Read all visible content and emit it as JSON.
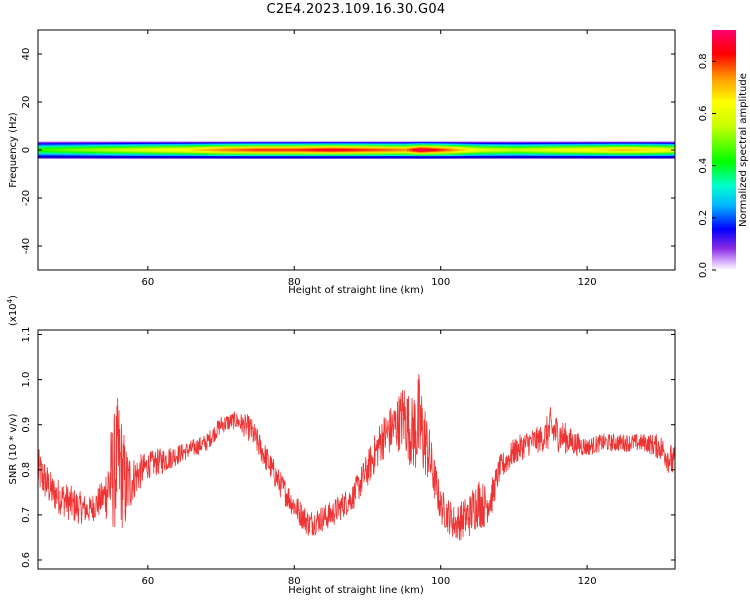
{
  "title": "C2E4.2023.109.16.30.G04",
  "chart_data": [
    {
      "type": "heatmap",
      "xlabel": "Height of straight line (km)",
      "ylabel": "Frequency (Hz)",
      "xlim": [
        45,
        132
      ],
      "ylim": [
        -50,
        50
      ],
      "xticks": [
        60,
        80,
        100,
        120
      ],
      "yticks": [
        -40,
        -20,
        0,
        20,
        40
      ],
      "band": {
        "center_hz": 0,
        "half_width_hz": 3,
        "peak_profile": {
          "x": [
            45,
            50,
            55,
            60,
            65,
            70,
            75,
            80,
            85,
            90,
            95,
            97,
            100,
            105,
            110,
            115,
            120,
            125,
            130,
            132
          ],
          "amplitude": [
            0.45,
            0.5,
            0.55,
            0.6,
            0.65,
            0.75,
            0.8,
            0.8,
            0.85,
            0.8,
            0.75,
            0.9,
            0.8,
            0.6,
            0.55,
            0.6,
            0.65,
            0.7,
            0.65,
            0.6
          ]
        }
      },
      "colorbar": {
        "label": "Normalized spectral amplitude",
        "range": [
          0,
          0.92
        ],
        "ticks": [
          "0.0",
          "0.2",
          "0.4",
          "0.6",
          "0.8"
        ],
        "tick_values": [
          0,
          0.2,
          0.4,
          0.6,
          0.8
        ]
      }
    },
    {
      "type": "line",
      "xlabel": "Height of straight line (km)",
      "ylabel": "SNR (10 * v/v)",
      "y_multiplier": "(x10",
      "y_multiplier_exp": "4",
      "y_multiplier_close": ")",
      "xlim": [
        45,
        132
      ],
      "ylim": [
        0.58,
        1.11
      ],
      "xticks": [
        60,
        80,
        100,
        120
      ],
      "yticks": [
        "0.6",
        "0.7",
        "0.8",
        "0.9",
        "1.0",
        "1.1"
      ],
      "ytick_values": [
        0.6,
        0.7,
        0.8,
        0.9,
        1.0,
        1.1
      ],
      "series": [
        {
          "color": "#ee3333",
          "x": [
            45,
            47,
            50,
            52,
            54,
            55,
            56,
            57,
            58,
            60,
            62,
            65,
            68,
            70,
            72,
            74,
            76,
            78,
            80,
            82,
            85,
            88,
            90,
            92,
            94,
            95,
            96,
            97,
            98,
            99,
            100,
            102,
            104,
            105,
            106,
            107,
            108,
            110,
            112,
            114,
            115,
            116,
            118,
            120,
            122,
            125,
            128,
            130,
            132
          ],
          "y": [
            0.8,
            0.75,
            0.72,
            0.71,
            0.74,
            0.78,
            0.82,
            0.76,
            0.78,
            0.81,
            0.82,
            0.84,
            0.86,
            0.9,
            0.91,
            0.89,
            0.83,
            0.77,
            0.72,
            0.68,
            0.7,
            0.74,
            0.8,
            0.87,
            0.9,
            0.92,
            0.88,
            0.9,
            0.86,
            0.79,
            0.72,
            0.68,
            0.7,
            0.73,
            0.72,
            0.74,
            0.8,
            0.84,
            0.86,
            0.87,
            0.89,
            0.88,
            0.86,
            0.85,
            0.86,
            0.86,
            0.86,
            0.85,
            0.81
          ],
          "noise": [
            0.05,
            0.04,
            0.04,
            0.03,
            0.04,
            0.12,
            0.15,
            0.1,
            0.05,
            0.03,
            0.03,
            0.02,
            0.02,
            0.02,
            0.02,
            0.03,
            0.03,
            0.03,
            0.03,
            0.03,
            0.03,
            0.03,
            0.04,
            0.05,
            0.06,
            0.08,
            0.08,
            0.12,
            0.08,
            0.05,
            0.04,
            0.04,
            0.05,
            0.06,
            0.05,
            0.04,
            0.03,
            0.03,
            0.03,
            0.03,
            0.05,
            0.04,
            0.03,
            0.02,
            0.02,
            0.02,
            0.02,
            0.03,
            0.04
          ]
        }
      ]
    }
  ]
}
